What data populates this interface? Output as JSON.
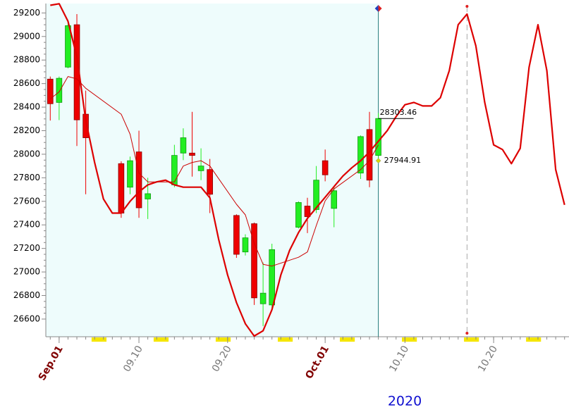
{
  "chart_data": {
    "type": "candlestick",
    "x_label": "2020",
    "x": [
      "2020-08-31",
      "2020-09-01",
      "2020-09-02",
      "2020-09-03",
      "2020-09-04",
      "2020-09-08",
      "2020-09-09",
      "2020-09-10",
      "2020-09-11",
      "2020-09-14",
      "2020-09-15",
      "2020-09-16",
      "2020-09-17",
      "2020-09-18",
      "2020-09-21",
      "2020-09-22",
      "2020-09-23",
      "2020-09-24",
      "2020-09-25",
      "2020-09-28",
      "2020-09-29",
      "2020-09-30",
      "2020-10-01",
      "2020-10-02",
      "2020-10-05",
      "2020-10-06",
      "2020-10-07"
    ],
    "open": [
      28638,
      28440,
      28740,
      29100,
      28340,
      27920,
      27720,
      28020,
      27620,
      27740,
      28010,
      28010,
      27860,
      27870,
      27480,
      27170,
      27410,
      26730,
      26720,
      27380,
      27560,
      27530,
      27945,
      27540,
      27840,
      28210,
      27990
    ],
    "high": [
      28660,
      28660,
      29140,
      29190,
      28540,
      27940,
      27980,
      28200,
      27800,
      28080,
      28220,
      28360,
      28050,
      27960,
      27490,
      27320,
      27420,
      27080,
      27240,
      27600,
      27630,
      27900,
      28040,
      27730,
      28160,
      28360,
      28350
    ],
    "low": [
      28286,
      28290,
      28730,
      28070,
      27660,
      27460,
      27660,
      27460,
      27450,
      27720,
      27950,
      27810,
      27780,
      27500,
      27120,
      27140,
      26720,
      26540,
      26680,
      27370,
      27330,
      27500,
      27770,
      27380,
      27790,
      27720,
      27950
    ],
    "close": [
      28429,
      28645,
      29092,
      28292,
      28140,
      27500,
      27945,
      27545,
      27665,
      27990,
      28140,
      27990,
      27900,
      27660,
      27150,
      27290,
      26780,
      26820,
      27190,
      27590,
      27470,
      27780,
      27825,
      27690,
      28150,
      27780,
      28303.46
    ],
    "up_color": "#22ee22",
    "down_color": "#ee0000",
    "lines": [
      {
        "color": "#dd0000",
        "width": 2.2,
        "x": [
          "2020-08-31",
          "2020-09-01",
          "2020-09-02",
          "2020-09-03",
          "2020-09-04",
          "2020-09-05",
          "2020-09-06",
          "2020-09-07",
          "2020-09-08",
          "2020-09-09",
          "2020-09-10",
          "2020-09-11",
          "2020-09-12",
          "2020-09-13",
          "2020-09-14",
          "2020-09-15",
          "2020-09-16",
          "2020-09-17",
          "2020-09-18",
          "2020-09-19",
          "2020-09-20",
          "2020-09-21",
          "2020-09-22",
          "2020-09-23",
          "2020-09-24",
          "2020-09-25",
          "2020-09-26",
          "2020-09-27",
          "2020-09-28",
          "2020-09-29",
          "2020-09-30",
          "2020-10-01",
          "2020-10-02",
          "2020-10-03",
          "2020-10-04",
          "2020-10-05",
          "2020-10-06",
          "2020-10-07",
          "2020-10-08",
          "2020-10-09",
          "2020-10-10",
          "2020-10-11",
          "2020-10-12",
          "2020-10-13",
          "2020-10-14",
          "2020-10-15",
          "2020-10-16",
          "2020-10-17",
          "2020-10-18",
          "2020-10-19",
          "2020-10-20",
          "2020-10-21",
          "2020-10-22",
          "2020-10-23",
          "2020-10-24",
          "2020-10-25",
          "2020-10-26",
          "2020-10-27",
          "2020-10-28"
        ],
        "values": [
          29265,
          29278,
          29130,
          28830,
          28290,
          27930,
          27620,
          27500,
          27500,
          27600,
          27680,
          27740,
          27765,
          27780,
          27740,
          27720,
          27720,
          27720,
          27630,
          27275,
          26975,
          26740,
          26560,
          26456,
          26500,
          26680,
          26975,
          27185,
          27335,
          27455,
          27545,
          27635,
          27725,
          27815,
          27885,
          27945,
          28020,
          28110,
          28200,
          28320,
          28420,
          28440,
          28410,
          28410,
          28480,
          28710,
          29100,
          29190,
          28920,
          28440,
          28080,
          28040,
          27920,
          28050,
          28740,
          29100,
          28710,
          27870,
          27570
        ]
      },
      {
        "color": "#cc0000",
        "width": 1,
        "x": [
          "2020-08-31",
          "2020-09-01",
          "2020-09-02",
          "2020-09-03",
          "2020-09-04",
          "2020-09-08",
          "2020-09-09",
          "2020-09-10",
          "2020-09-11",
          "2020-09-14",
          "2020-09-15",
          "2020-09-16",
          "2020-09-17",
          "2020-09-18",
          "2020-09-21",
          "2020-09-22",
          "2020-09-23",
          "2020-09-24",
          "2020-09-25",
          "2020-09-28",
          "2020-09-29",
          "2020-09-30",
          "2020-10-01",
          "2020-10-02",
          "2020-10-05",
          "2020-10-06",
          "2020-10-07"
        ],
        "values": [
          28470,
          28530,
          28660,
          28640,
          28560,
          28340,
          28170,
          27840,
          27765,
          27765,
          27900,
          27930,
          27945,
          27900,
          27575,
          27485,
          27245,
          27065,
          27050,
          27125,
          27170,
          27395,
          27605,
          27705,
          27870,
          27945,
          28080
        ]
      }
    ],
    "marker": {
      "x": "2020-10-07",
      "value": 27944.91,
      "color": "#d8d800"
    },
    "highlight_end": "2020-10-07",
    "dashed_date": "2020-10-17",
    "xlim": [
      "2020-08-31",
      "2020-10-28"
    ],
    "xticks": [
      {
        "value": "2020-09-01",
        "label": "Sep.01"
      },
      {
        "value": "2020-09-10",
        "label": "09.10"
      },
      {
        "value": "2020-09-20",
        "label": "09.20"
      },
      {
        "value": "2020-10-01",
        "label": "Oct.01"
      },
      {
        "value": "2020-10-10",
        "label": "10.10"
      },
      {
        "value": "2020-10-20",
        "label": "10.20"
      }
    ],
    "ylim": [
      26450,
      29280
    ],
    "yticks": [
      26600,
      26800,
      27000,
      27200,
      27400,
      27600,
      27800,
      28000,
      28200,
      28400,
      28600,
      28800,
      29000,
      29200
    ]
  }
}
